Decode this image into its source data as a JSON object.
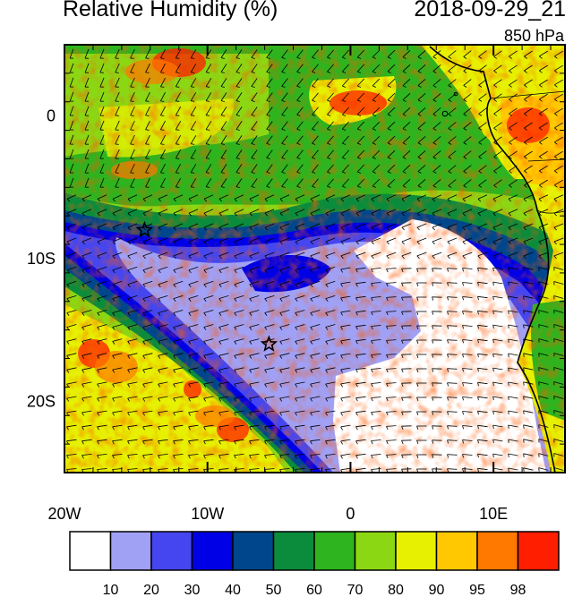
{
  "header": {
    "title": "Relative Humidity (%)",
    "datetime": "2018-09-29_21",
    "level": "850 hPa"
  },
  "map": {
    "lon_range": [
      -20,
      15
    ],
    "lat_range": [
      -25,
      5
    ],
    "x_ticks": [
      {
        "value": -20,
        "label": "20W"
      },
      {
        "value": -10,
        "label": "10W"
      },
      {
        "value": 0,
        "label": "0"
      },
      {
        "value": 10,
        "label": "10E"
      }
    ],
    "y_ticks": [
      {
        "value": 0,
        "label": "0"
      },
      {
        "value": -10,
        "label": "10S"
      },
      {
        "value": -20,
        "label": "20S"
      }
    ],
    "markers": [
      {
        "lon": -14.4,
        "lat": -8.0
      },
      {
        "lon": -5.7,
        "lat": -16.0
      }
    ]
  },
  "colorbar": {
    "colors": [
      "#ffffff",
      "#a0a0f5",
      "#4646f0",
      "#0000e6",
      "#00468c",
      "#0a8c3c",
      "#2db41e",
      "#8cd714",
      "#e6f000",
      "#ffc800",
      "#ff7800",
      "#ff1e00"
    ],
    "labels": [
      "10",
      "20",
      "30",
      "40",
      "50",
      "60",
      "70",
      "80",
      "90",
      "95",
      "98"
    ]
  }
}
